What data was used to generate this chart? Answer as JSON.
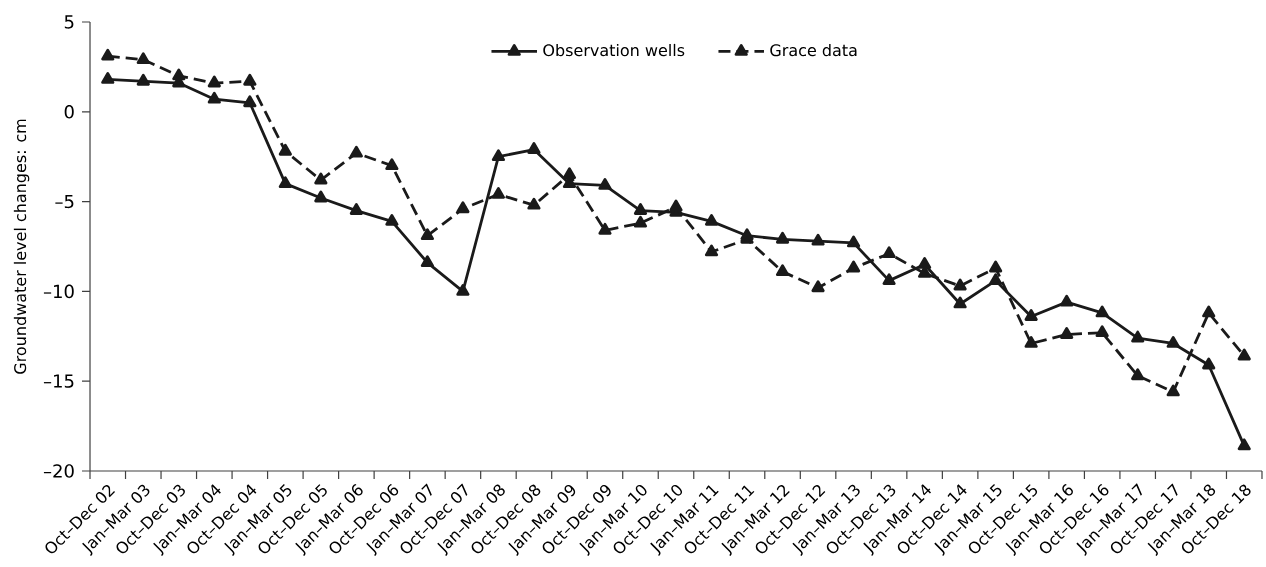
{
  "chart_data": {
    "type": "line",
    "ylabel": "Groundwater level changes: cm",
    "categories": [
      "Oct–Dec 02",
      "Jan–Mar 03",
      "Oct–Dec 03",
      "Jan–Mar 04",
      "Oct–Dec 04",
      "Jan–Mar 05",
      "Oct–Dec 05",
      "Jan–Mar 06",
      "Oct–Dec 06",
      "Jan–Mar 07",
      "Oct–Dec 07",
      "Jan–Mar 08",
      "Oct–Dec 08",
      "Jan–Mar 09",
      "Oct–Dec 09",
      "Jan–Mar 10",
      "Oct–Dec 10",
      "Jan–Mar 11",
      "Oct–Dec 11",
      "Jan–Mar 12",
      "Oct–Dec 12",
      "Jan–Mar 13",
      "Oct–Dec 13",
      "Jan–Mar 14",
      "Oct–Dec 14",
      "Jan–Mar 15",
      "Oct–Dec 15",
      "Jan–Mar 16",
      "Oct–Dec 16",
      "Jan–Mar 17",
      "Oct–Dec 17",
      "Jan–Mar 18",
      "Oct–Dec 18"
    ],
    "series": [
      {
        "name": "Observation wells",
        "color": "#1a1a1a",
        "line_style": "solid",
        "values": [
          1.8,
          1.7,
          1.6,
          0.7,
          0.5,
          -4.0,
          -4.8,
          -5.5,
          -6.1,
          -8.4,
          -10.0,
          -2.5,
          -2.1,
          -4.0,
          -4.1,
          -5.5,
          -5.6,
          -6.1,
          -6.9,
          -7.1,
          -7.2,
          -7.3,
          -9.4,
          -8.5,
          -10.7,
          -9.4,
          -11.4,
          -10.6,
          -11.2,
          -12.6,
          -12.9,
          -14.1,
          -18.6
        ]
      },
      {
        "name": "Grace data",
        "color": "#1a1a1a",
        "line_style": "dashed",
        "values": [
          3.1,
          2.9,
          2.0,
          1.6,
          1.7,
          -2.2,
          -3.8,
          -2.3,
          -3.0,
          -6.9,
          -5.4,
          -4.6,
          -5.2,
          -3.5,
          -6.6,
          -6.2,
          -5.3,
          -7.8,
          -7.1,
          -8.9,
          -9.8,
          -8.7,
          -7.9,
          -9.0,
          -9.7,
          -8.7,
          -12.9,
          -12.4,
          -12.3,
          -14.7,
          -15.6,
          -11.2,
          -13.6
        ]
      }
    ],
    "ylim": [
      -20,
      5
    ],
    "yticks": [
      {
        "value": -20,
        "label": "–20"
      },
      {
        "value": -15,
        "label": "–15"
      },
      {
        "value": -10,
        "label": "–10"
      },
      {
        "value": -5,
        "label": "–5"
      },
      0,
      5
    ],
    "grid": false,
    "legend": "top",
    "marker": "triangle"
  }
}
